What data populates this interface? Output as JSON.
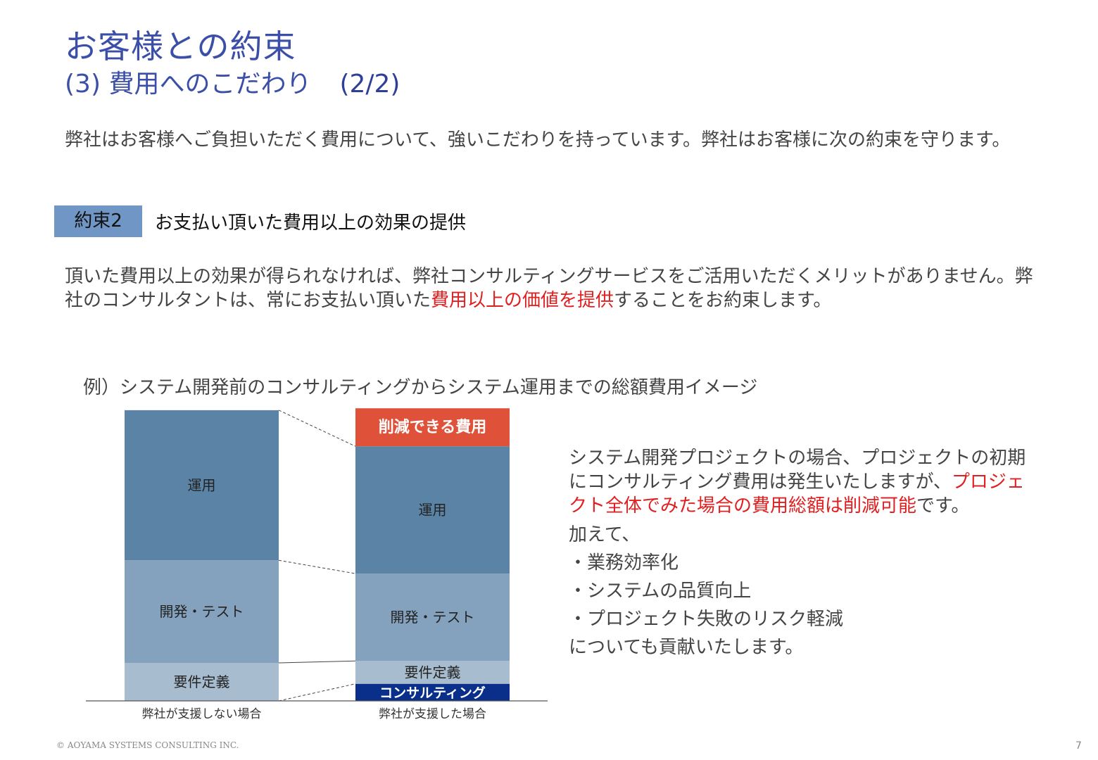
{
  "header": {
    "title": "お客様との約束",
    "subtitle": "(3) 費用へのこだわり",
    "page_indicator": "(2/2)"
  },
  "intro": "弊社はお客様へご負担いただく費用について、強いこだわりを持っています。弊社はお客様に次の約束を守ります。",
  "promise": {
    "label": "約束2",
    "title": "お支払い頂いた費用以上の効果の提供"
  },
  "description": {
    "part1": "頂いた費用以上の効果が得られなければ、弊社コンサルティングサービスをご活用いただくメリットがありません。弊社のコンサルタントは、常にお支払い頂いた",
    "highlight": "費用以上の価値を提供",
    "part2": "することをお約束します。"
  },
  "example_title": "例）システム開発前のコンサルティングからシステム運用までの総額費用イメージ",
  "chart_data": {
    "type": "bar",
    "stacked": true,
    "categories": [
      "弊社が支援しない場合",
      "弊社が支援した場合"
    ],
    "series": [
      {
        "name": "コンサルティング",
        "values": [
          0,
          9
        ],
        "color": "#0a2f8a"
      },
      {
        "name": "要件定義",
        "values": [
          20,
          12
        ],
        "color": "#a8bccf"
      },
      {
        "name": "開発・テスト",
        "values": [
          54,
          46
        ],
        "color": "#84a2bd"
      },
      {
        "name": "運用",
        "values": [
          79,
          67
        ],
        "color": "#5b83a5"
      },
      {
        "name": "削減できる費用",
        "values": [
          0,
          20
        ],
        "color": "#e0513a"
      }
    ],
    "segment_labels": {
      "before": [
        "要件定義",
        "開発・テスト",
        "運用"
      ],
      "after": [
        "コンサルティング",
        "要件定義",
        "開発・テスト",
        "運用",
        "削減できる費用"
      ]
    },
    "legend": "none",
    "grid": false
  },
  "right_text": {
    "p1_part1": "システム開発プロジェクトの場合、プロジェクトの初期にコンサルティング費用は発生いたしますが、",
    "p1_highlight": "プロジェクト全体でみた場合の費用総額は削減可能",
    "p1_part2": "です。",
    "addition": "加えて、",
    "bullets": [
      "・業務効率化",
      "・システムの品質向上",
      "・プロジェクト失敗のリスク軽減"
    ],
    "closing": "についても貢献いたします。"
  },
  "footer": {
    "copyright": "© AOYAMA SYSTEMS CONSULTING INC.",
    "page_number": "7"
  }
}
